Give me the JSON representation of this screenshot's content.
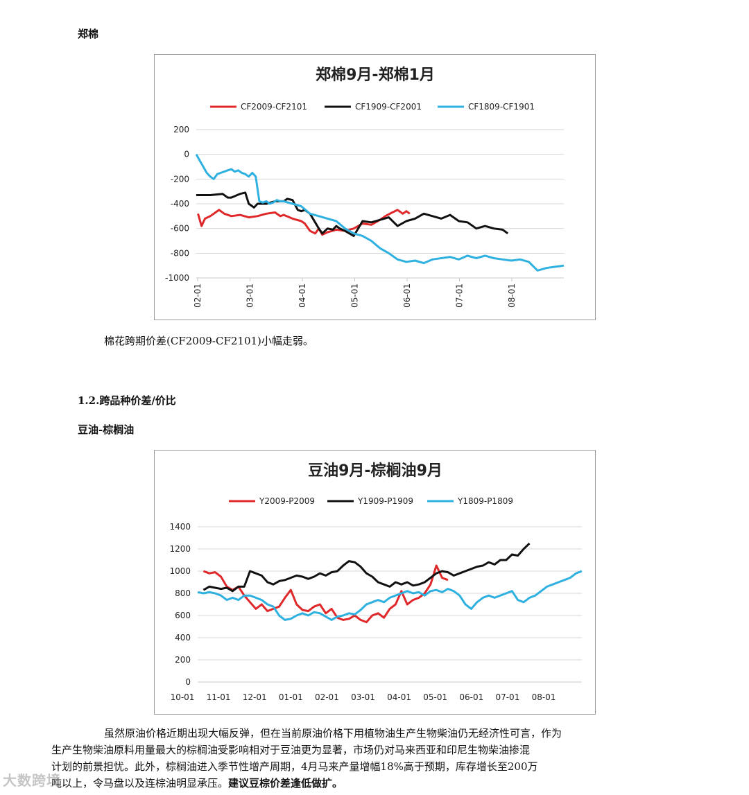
{
  "section1": {
    "heading": "郑棉",
    "caption": "棉花跨期价差(CF2009-CF2101)小幅走弱。"
  },
  "section2": {
    "number_heading": "1.2.跨品种价差/价比",
    "heading": "豆油-棕榈油",
    "paragraph_lines": [
      "虽然原油价格近期出现大幅反弹，但在当前原油价格下用植物油生产生物柴油仍无经济性可言，作为",
      "生产生物柴油原料用量最大的棕榈油受影响相对于豆油更为显著，市场仍对马来西亚和印尼生物柴油掺混",
      "计划的前景担忧。此外，棕榈油进入季节性增产周期，4月马来产量增幅18%高于预期，库存增长至200万",
      "吨以上，令马盘以及连棕油明显承压。"
    ],
    "paragraph_bold": "建议豆棕价差逢低做扩。"
  },
  "watermark": "大数跨境",
  "colors": {
    "red": "#e0282a",
    "black": "#111111",
    "blue": "#2eb1e0"
  },
  "chart_data": [
    {
      "type": "line",
      "title": "郑棉9月-郑棉1月",
      "xlabel": "",
      "ylabel": "",
      "ylim": [
        -1000,
        200
      ],
      "yticks": [
        200,
        0,
        -200,
        -400,
        -600,
        -800,
        -1000
      ],
      "x_ticks": [
        "02-01",
        "03-01",
        "04-01",
        "05-01",
        "06-01",
        "07-01",
        "08-01"
      ],
      "x_domain_days": [
        0,
        210
      ],
      "legend_position": "top",
      "series": [
        {
          "name": "CF2009-CF2101",
          "color": "#e0282a",
          "x": [
            1,
            3,
            5,
            8,
            10,
            13,
            16,
            20,
            25,
            30,
            35,
            40,
            45,
            48,
            50,
            55,
            60,
            62,
            65,
            68,
            70,
            72,
            75,
            80,
            85,
            90,
            95,
            100,
            105,
            108,
            112,
            115,
            118,
            120,
            122
          ],
          "values": [
            -480,
            -580,
            -520,
            -500,
            -480,
            -450,
            -480,
            -500,
            -490,
            -510,
            -500,
            -480,
            -470,
            -500,
            -490,
            -520,
            -540,
            -560,
            -620,
            -640,
            -600,
            -650,
            -630,
            -610,
            -620,
            -600,
            -560,
            -570,
            -530,
            -500,
            -470,
            -450,
            -480,
            -460,
            -480
          ]
        },
        {
          "name": "CF1909-CF2001",
          "color": "#111111",
          "x": [
            0,
            8,
            15,
            18,
            20,
            25,
            28,
            30,
            33,
            35,
            40,
            45,
            50,
            52,
            55,
            58,
            60,
            62,
            65,
            70,
            72,
            75,
            78,
            80,
            82,
            85,
            90,
            95,
            100,
            105,
            110,
            115,
            120,
            125,
            130,
            135,
            140,
            145,
            150,
            155,
            160,
            165,
            170,
            175,
            178
          ],
          "values": [
            -330,
            -330,
            -320,
            -350,
            -350,
            -320,
            -310,
            -400,
            -430,
            -400,
            -400,
            -380,
            -380,
            -360,
            -370,
            -450,
            -460,
            -450,
            -480,
            -600,
            -640,
            -600,
            -610,
            -580,
            -600,
            -620,
            -660,
            -540,
            -550,
            -530,
            -510,
            -580,
            -540,
            -520,
            -480,
            -500,
            -520,
            -490,
            -540,
            -550,
            -600,
            -580,
            -600,
            -610,
            -640
          ]
        },
        {
          "name": "CF1809-CF1901",
          "color": "#2eb1e0",
          "x": [
            0,
            2,
            4,
            6,
            8,
            10,
            12,
            14,
            16,
            18,
            20,
            22,
            24,
            26,
            28,
            30,
            32,
            34,
            36,
            38,
            40,
            42,
            44,
            46,
            48,
            50,
            55,
            60,
            65,
            70,
            75,
            80,
            85,
            90,
            95,
            100,
            105,
            110,
            115,
            120,
            125,
            130,
            135,
            140,
            145,
            150,
            155,
            160,
            165,
            170,
            175,
            180,
            185,
            190,
            195,
            200,
            205,
            210
          ],
          "values": [
            0,
            -50,
            -100,
            -150,
            -180,
            -200,
            -160,
            -150,
            -140,
            -130,
            -120,
            -140,
            -130,
            -150,
            -160,
            -180,
            -150,
            -180,
            -380,
            -390,
            -380,
            -400,
            -390,
            -370,
            -380,
            -380,
            -400,
            -420,
            -480,
            -500,
            -520,
            -540,
            -600,
            -640,
            -660,
            -700,
            -760,
            -800,
            -850,
            -870,
            -860,
            -880,
            -850,
            -840,
            -830,
            -850,
            -820,
            -840,
            -820,
            -840,
            -850,
            -860,
            -850,
            -870,
            -940,
            -920,
            -910,
            -900
          ]
        }
      ]
    },
    {
      "type": "line",
      "title": "豆油9月-棕榈油9月",
      "xlabel": "",
      "ylabel": "",
      "ylim": [
        0,
        1400
      ],
      "yticks": [
        1400,
        1200,
        1000,
        800,
        600,
        400,
        200,
        0
      ],
      "x_ticks": [
        "10-01",
        "11-01",
        "12-01",
        "01-01",
        "02-01",
        "03-01",
        "04-01",
        "05-01",
        "06-01",
        "07-01",
        "08-01"
      ],
      "x_domain_days": [
        0,
        330
      ],
      "legend_position": "top",
      "series": [
        {
          "name": "Y2009-P2009",
          "color": "#e0282a",
          "x": [
            5,
            10,
            15,
            20,
            25,
            30,
            35,
            40,
            45,
            50,
            55,
            60,
            65,
            70,
            75,
            80,
            85,
            90,
            95,
            100,
            105,
            110,
            115,
            120,
            125,
            130,
            135,
            140,
            145,
            150,
            155,
            160,
            165,
            170,
            175,
            180,
            185,
            190,
            195,
            200,
            205,
            210,
            215
          ],
          "values": [
            1000,
            980,
            990,
            950,
            860,
            830,
            860,
            780,
            720,
            660,
            700,
            640,
            660,
            680,
            760,
            830,
            700,
            650,
            640,
            680,
            700,
            620,
            660,
            580,
            560,
            570,
            600,
            560,
            540,
            600,
            620,
            580,
            660,
            700,
            820,
            700,
            740,
            760,
            800,
            880,
            1050,
            940,
            920
          ]
        },
        {
          "name": "Y1909-P1909",
          "color": "#111111",
          "x": [
            5,
            10,
            15,
            20,
            25,
            30,
            35,
            40,
            45,
            50,
            55,
            60,
            65,
            70,
            75,
            80,
            85,
            90,
            95,
            100,
            105,
            110,
            115,
            120,
            125,
            130,
            135,
            140,
            145,
            150,
            155,
            160,
            165,
            170,
            175,
            180,
            185,
            190,
            195,
            200,
            205,
            210,
            215,
            220,
            225,
            230,
            235,
            240,
            245,
            250,
            255,
            260,
            265,
            270,
            275,
            280,
            285
          ],
          "values": [
            830,
            860,
            850,
            840,
            850,
            820,
            860,
            860,
            1000,
            980,
            960,
            900,
            880,
            910,
            920,
            940,
            960,
            950,
            930,
            950,
            980,
            960,
            990,
            1000,
            1050,
            1090,
            1080,
            1040,
            980,
            950,
            900,
            880,
            860,
            900,
            880,
            900,
            870,
            880,
            900,
            940,
            980,
            1000,
            990,
            960,
            980,
            1000,
            1020,
            1040,
            1050,
            1080,
            1060,
            1100,
            1100,
            1150,
            1140,
            1200,
            1250
          ]
        },
        {
          "name": "Y1809-P1809",
          "color": "#2eb1e0",
          "x": [
            0,
            5,
            10,
            15,
            20,
            25,
            30,
            35,
            40,
            45,
            50,
            55,
            60,
            65,
            70,
            75,
            80,
            85,
            90,
            95,
            100,
            105,
            110,
            115,
            120,
            125,
            130,
            135,
            140,
            145,
            150,
            155,
            160,
            165,
            170,
            175,
            180,
            185,
            190,
            195,
            200,
            205,
            210,
            215,
            220,
            225,
            230,
            235,
            240,
            245,
            250,
            255,
            260,
            265,
            270,
            275,
            280,
            285,
            290,
            295,
            300,
            305,
            310,
            315,
            320,
            325,
            330
          ],
          "values": [
            810,
            800,
            810,
            800,
            780,
            740,
            760,
            740,
            780,
            780,
            760,
            740,
            700,
            680,
            600,
            560,
            570,
            600,
            620,
            600,
            630,
            620,
            590,
            560,
            590,
            600,
            620,
            610,
            650,
            700,
            720,
            740,
            720,
            760,
            780,
            800,
            820,
            800,
            810,
            780,
            820,
            830,
            810,
            840,
            820,
            780,
            700,
            660,
            720,
            760,
            780,
            760,
            780,
            800,
            820,
            740,
            720,
            760,
            780,
            820,
            860,
            880,
            900,
            920,
            940,
            980,
            1000
          ]
        }
      ]
    }
  ]
}
